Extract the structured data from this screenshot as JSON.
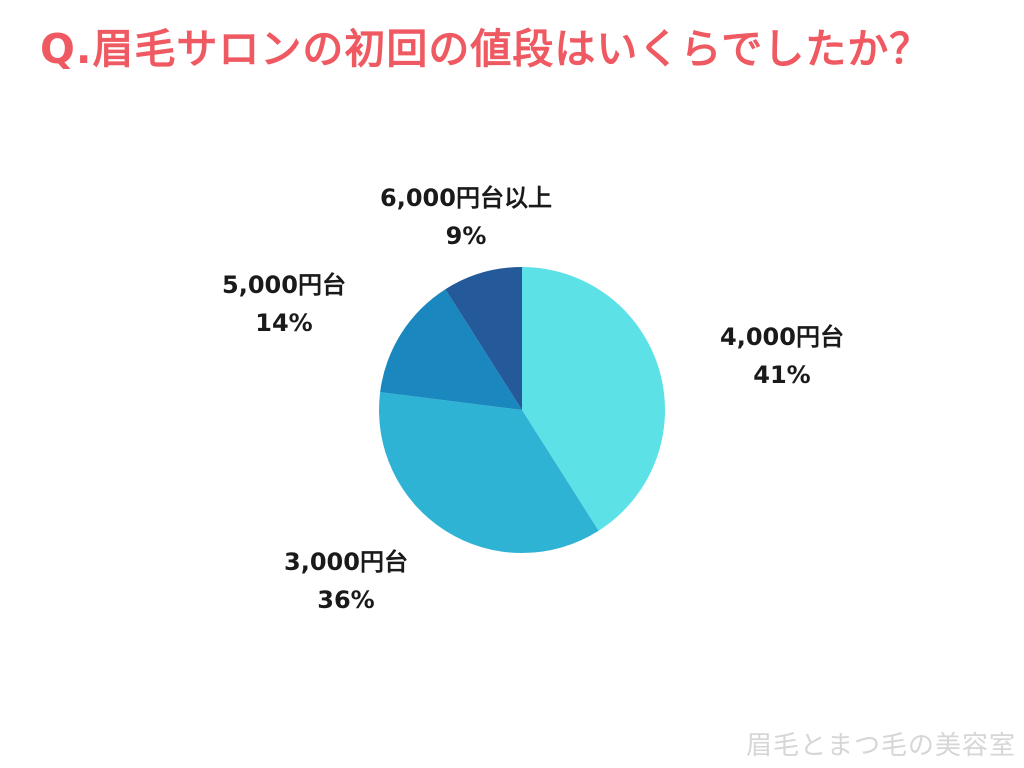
{
  "title": "Q.眉毛サロンの初回の値段はいくらでしたか？",
  "watermark": "眉毛とまつ毛の美容室",
  "chart_data": {
    "type": "pie",
    "title": "Q.眉毛サロンの初回の値段はいくらでしたか？",
    "start": "12 o'clock",
    "direction": "clockwise",
    "slices": [
      {
        "label": "4,000円台",
        "value": 41,
        "value_label": "41%",
        "color": "#5ce1e6"
      },
      {
        "label": "3,000円台",
        "value": 36,
        "value_label": "36%",
        "color": "#2fb3d5"
      },
      {
        "label": "5,000円台",
        "value": 14,
        "value_label": "14%",
        "color": "#1a87bf"
      },
      {
        "label": "6,000円台以上",
        "value": 9,
        "value_label": "9%",
        "color": "#245a9a"
      }
    ]
  }
}
